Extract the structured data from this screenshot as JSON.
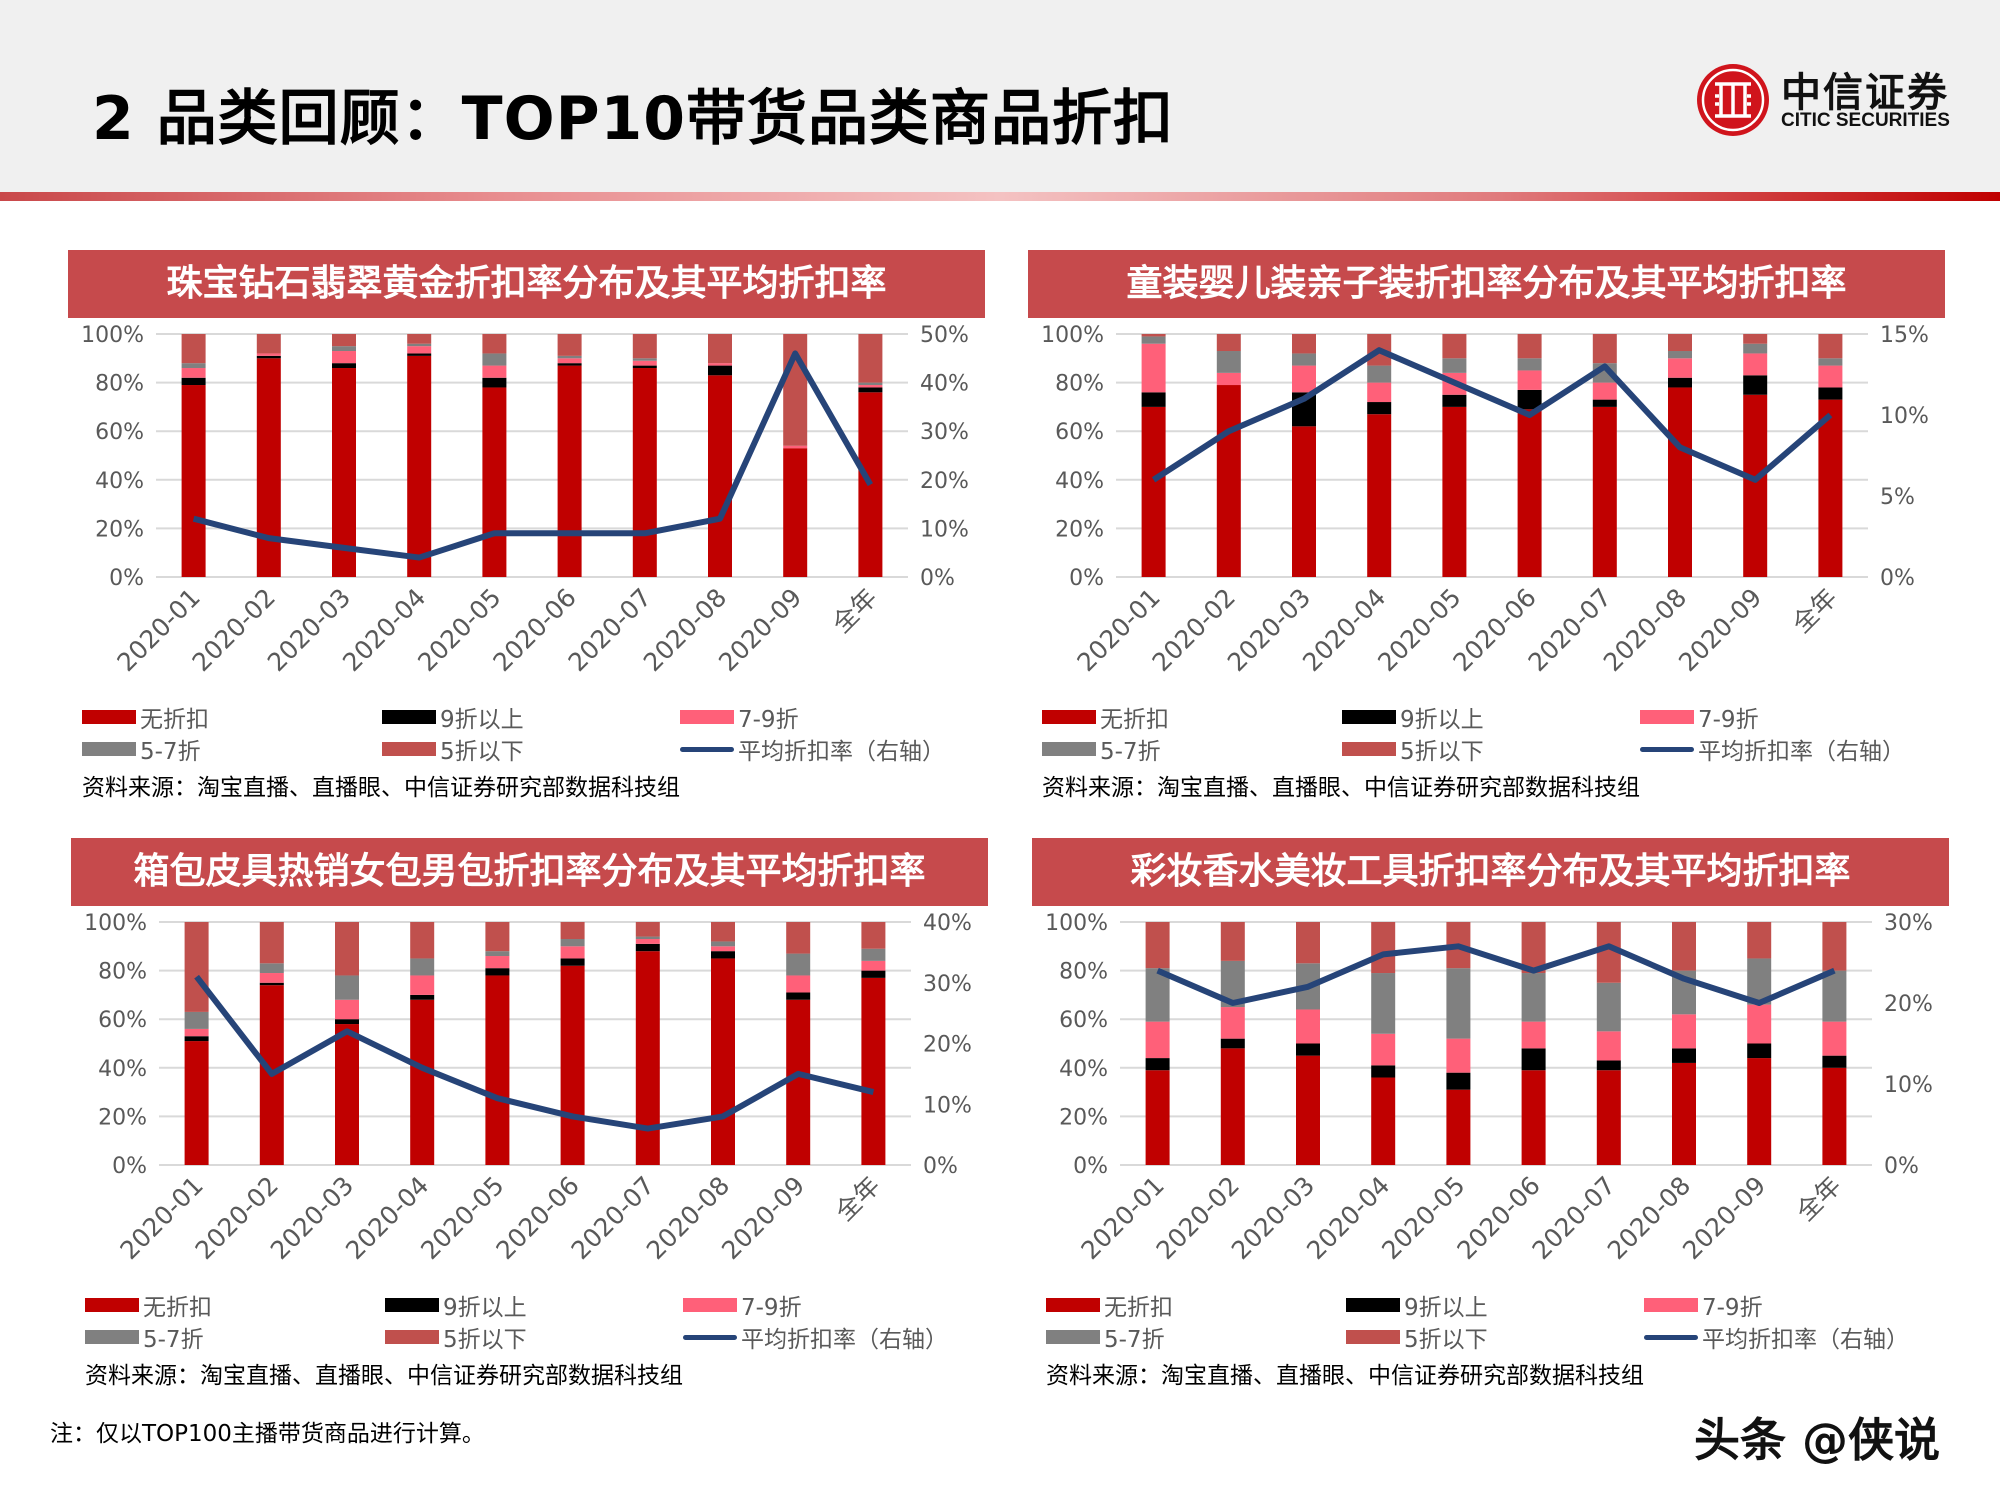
{
  "header": {
    "title": "2 品类回顾：TOP10带货品类商品折扣"
  },
  "logo": {
    "cn": "中信证券",
    "en": "CITIC SECURITIES"
  },
  "colors": {
    "title_bar": "#c64a4c",
    "no_discount": "#c00000",
    "above_90": "#000000",
    "p70_90": "#ff6079",
    "p50_70": "#808080",
    "below_50": "#c0504d",
    "avg_line": "#264478"
  },
  "legend_labels": [
    "无折扣",
    "9折以上",
    "7-9折",
    "5-7折",
    "5折以下",
    "平均折扣率（右轴）"
  ],
  "source": "资料来源：淘宝直播、直播眼、中信证券研究部数据科技组",
  "note": "注：仅以TOP100主播带货商品进行计算。",
  "watermark": "头条 @侠说",
  "chart_data": [
    {
      "type": "bar",
      "stacked": true,
      "title": "珠宝钻石翡翠黄金折扣率分布及其平均折扣率",
      "categories": [
        "2020-01",
        "2020-02",
        "2020-03",
        "2020-04",
        "2020-05",
        "2020-06",
        "2020-07",
        "2020-08",
        "2020-09",
        "全年"
      ],
      "ylim": [
        0,
        100
      ],
      "yticks": [
        "0%",
        "20%",
        "40%",
        "60%",
        "80%",
        "100%"
      ],
      "y2lim": [
        0,
        50
      ],
      "y2ticks": [
        "0%",
        "10%",
        "20%",
        "30%",
        "40%",
        "50%"
      ],
      "grid": true,
      "legend": "bottom",
      "series": [
        {
          "name": "无折扣",
          "values": [
            79,
            90,
            86,
            91,
            78,
            87,
            86,
            83,
            53,
            76
          ]
        },
        {
          "name": "9折以上",
          "values": [
            3,
            1,
            2,
            1,
            4,
            1,
            1,
            4,
            0,
            2
          ]
        },
        {
          "name": "7-9折",
          "values": [
            4,
            1,
            5,
            3,
            5,
            2,
            2,
            1,
            1,
            1
          ]
        },
        {
          "name": "5-7折",
          "values": [
            2,
            0,
            2,
            1,
            5,
            1,
            1,
            0,
            0,
            1
          ]
        },
        {
          "name": "5折以下",
          "values": [
            12,
            8,
            5,
            4,
            8,
            9,
            10,
            12,
            46,
            20
          ]
        }
      ],
      "line": {
        "name": "平均折扣率（右轴）",
        "values": [
          12,
          8,
          6,
          4,
          9,
          9,
          9,
          12,
          46,
          19
        ]
      }
    },
    {
      "type": "bar",
      "stacked": true,
      "title": "童装婴儿装亲子装折扣率分布及其平均折扣率",
      "categories": [
        "2020-01",
        "2020-02",
        "2020-03",
        "2020-04",
        "2020-05",
        "2020-06",
        "2020-07",
        "2020-08",
        "2020-09",
        "全年"
      ],
      "ylim": [
        0,
        100
      ],
      "yticks": [
        "0%",
        "20%",
        "40%",
        "60%",
        "80%",
        "100%"
      ],
      "y2lim": [
        0,
        15
      ],
      "y2ticks": [
        "0%",
        "5%",
        "10%",
        "15%"
      ],
      "grid": true,
      "legend": "bottom",
      "series": [
        {
          "name": "无折扣",
          "values": [
            70,
            79,
            62,
            67,
            70,
            69,
            70,
            78,
            75,
            73
          ]
        },
        {
          "name": "9折以上",
          "values": [
            6,
            0,
            14,
            5,
            5,
            8,
            3,
            4,
            8,
            5
          ]
        },
        {
          "name": "7-9折",
          "values": [
            20,
            5,
            11,
            8,
            9,
            8,
            7,
            8,
            9,
            9
          ]
        },
        {
          "name": "5-7折",
          "values": [
            3,
            9,
            5,
            7,
            6,
            5,
            8,
            3,
            4,
            3
          ]
        },
        {
          "name": "5折以下",
          "values": [
            1,
            7,
            8,
            13,
            10,
            10,
            12,
            7,
            4,
            10
          ]
        }
      ],
      "line": {
        "name": "平均折扣率（右轴）",
        "values": [
          6,
          9,
          11,
          14,
          12,
          10,
          13,
          8,
          6,
          10
        ]
      }
    },
    {
      "type": "bar",
      "stacked": true,
      "title": "箱包皮具热销女包男包折扣率分布及其平均折扣率",
      "categories": [
        "2020-01",
        "2020-02",
        "2020-03",
        "2020-04",
        "2020-05",
        "2020-06",
        "2020-07",
        "2020-08",
        "2020-09",
        "全年"
      ],
      "ylim": [
        0,
        100
      ],
      "yticks": [
        "0%",
        "20%",
        "40%",
        "60%",
        "80%",
        "100%"
      ],
      "y2lim": [
        0,
        40
      ],
      "y2ticks": [
        "0%",
        "10%",
        "20%",
        "30%",
        "40%"
      ],
      "grid": true,
      "legend": "bottom",
      "series": [
        {
          "name": "无折扣",
          "values": [
            51,
            74,
            58,
            68,
            78,
            82,
            88,
            85,
            68,
            77
          ]
        },
        {
          "name": "9折以上",
          "values": [
            2,
            1,
            2,
            2,
            3,
            3,
            3,
            3,
            3,
            3
          ]
        },
        {
          "name": "7-9折",
          "values": [
            3,
            4,
            8,
            8,
            5,
            5,
            2,
            2,
            7,
            4
          ]
        },
        {
          "name": "5-7折",
          "values": [
            7,
            4,
            10,
            7,
            2,
            3,
            1,
            2,
            9,
            5
          ]
        },
        {
          "name": "5折以下",
          "values": [
            37,
            17,
            22,
            15,
            12,
            7,
            6,
            8,
            13,
            11
          ]
        }
      ],
      "line": {
        "name": "平均折扣率（右轴）",
        "values": [
          31,
          15,
          22,
          16,
          11,
          8,
          6,
          8,
          15,
          12
        ]
      }
    },
    {
      "type": "bar",
      "stacked": true,
      "title": "彩妆香水美妆工具折扣率分布及其平均折扣率",
      "categories": [
        "2020-01",
        "2020-02",
        "2020-03",
        "2020-04",
        "2020-05",
        "2020-06",
        "2020-07",
        "2020-08",
        "2020-09",
        "全年"
      ],
      "ylim": [
        0,
        100
      ],
      "yticks": [
        "0%",
        "20%",
        "40%",
        "60%",
        "80%",
        "100%"
      ],
      "y2lim": [
        0,
        30
      ],
      "y2ticks": [
        "0%",
        "10%",
        "20%",
        "30%"
      ],
      "grid": true,
      "legend": "bottom",
      "series": [
        {
          "name": "无折扣",
          "values": [
            39,
            48,
            45,
            36,
            31,
            39,
            39,
            42,
            44,
            40
          ]
        },
        {
          "name": "9折以上",
          "values": [
            5,
            4,
            5,
            5,
            7,
            9,
            4,
            6,
            6,
            5
          ]
        },
        {
          "name": "7-9折",
          "values": [
            15,
            13,
            14,
            13,
            14,
            11,
            12,
            14,
            16,
            14
          ]
        },
        {
          "name": "5-7折",
          "values": [
            22,
            19,
            19,
            25,
            29,
            20,
            20,
            18,
            19,
            21
          ]
        },
        {
          "name": "5折以下",
          "values": [
            19,
            16,
            17,
            21,
            19,
            21,
            25,
            20,
            15,
            20
          ]
        }
      ],
      "line": {
        "name": "平均折扣率（右轴）",
        "values": [
          24,
          20,
          22,
          26,
          27,
          24,
          27,
          23,
          20,
          24
        ]
      }
    }
  ]
}
